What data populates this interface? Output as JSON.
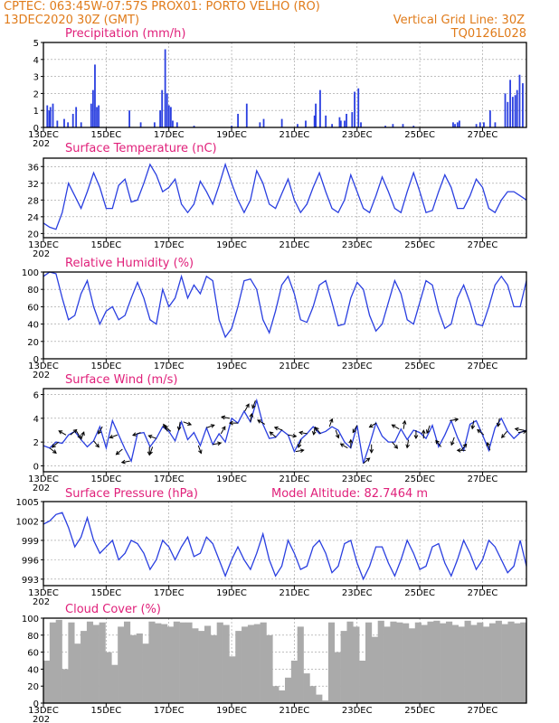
{
  "header": {
    "left_line1": "CPTEC:   063:45W-07:57S   PROX01: PORTO VELHO (RO)",
    "left_line2": "13DEC2020 30Z (GMT)",
    "right_line2": "Vertical Grid Line: 30Z",
    "right_line3": "TQ0126L028"
  },
  "colors": {
    "header": "#e07b1a",
    "title": "#e0207a",
    "series": "#2a3fe0",
    "cloud": "#aaaaaa"
  },
  "x_axis": {
    "ticks": [
      "13DEC",
      "15DEC",
      "17DEC",
      "19DEC",
      "21DEC",
      "23DEC",
      "25DEC",
      "27DEC"
    ],
    "under_label": "202"
  },
  "chart_data": [
    {
      "type": "bar",
      "title": "Precipitation (mm/h)",
      "ylim": [
        0,
        5
      ],
      "yticks": [
        0,
        1,
        2,
        3,
        4,
        5
      ],
      "grid": true,
      "points": [
        [
          0.6,
          1.3
        ],
        [
          0.9,
          1.0
        ],
        [
          1.1,
          1.2
        ],
        [
          1.5,
          1.4
        ],
        [
          2.2,
          0.4
        ],
        [
          3.3,
          0.5
        ],
        [
          3.9,
          0.3
        ],
        [
          4.7,
          0.8
        ],
        [
          5.2,
          1.2
        ],
        [
          6.0,
          0.3
        ],
        [
          7.6,
          1.4
        ],
        [
          7.9,
          2.2
        ],
        [
          8.2,
          3.7
        ],
        [
          8.5,
          1.2
        ],
        [
          8.8,
          1.3
        ],
        [
          13.7,
          1.0
        ],
        [
          15.5,
          0.3
        ],
        [
          17.7,
          0.3
        ],
        [
          18.6,
          1.0
        ],
        [
          18.9,
          2.2
        ],
        [
          19.4,
          4.6
        ],
        [
          19.7,
          2.0
        ],
        [
          20.0,
          1.3
        ],
        [
          20.3,
          1.2
        ],
        [
          20.6,
          0.4
        ],
        [
          21.3,
          0.3
        ],
        [
          24.0,
          0.1
        ],
        [
          30.0,
          0.1
        ],
        [
          31.0,
          0.8
        ],
        [
          32.4,
          1.4
        ],
        [
          34.5,
          0.3
        ],
        [
          35.1,
          0.5
        ],
        [
          38.0,
          0.5
        ],
        [
          40.5,
          0.2
        ],
        [
          41.8,
          0.4
        ],
        [
          43.2,
          0.7
        ],
        [
          43.4,
          1.4
        ],
        [
          44.1,
          2.2
        ],
        [
          45.0,
          0.7
        ],
        [
          46.0,
          0.2
        ],
        [
          47.2,
          0.6
        ],
        [
          47.4,
          0.4
        ],
        [
          48.0,
          0.4
        ],
        [
          48.3,
          0.8
        ],
        [
          49.2,
          0.9
        ],
        [
          49.6,
          2.1
        ],
        [
          50.2,
          2.3
        ],
        [
          50.6,
          0.3
        ],
        [
          54.5,
          0.1
        ],
        [
          55.7,
          0.2
        ],
        [
          57.3,
          0.2
        ],
        [
          59.0,
          0.1
        ],
        [
          65.3,
          0.3
        ],
        [
          65.6,
          0.2
        ],
        [
          66.0,
          0.3
        ],
        [
          66.3,
          0.4
        ],
        [
          69.0,
          0.2
        ],
        [
          69.6,
          0.3
        ],
        [
          70.2,
          0.3
        ],
        [
          71.2,
          1.0
        ],
        [
          72.0,
          0.3
        ],
        [
          73.6,
          2.0
        ],
        [
          74.0,
          1.5
        ],
        [
          74.4,
          2.8
        ],
        [
          74.8,
          1.8
        ],
        [
          75.2,
          1.9
        ],
        [
          75.5,
          2.2
        ],
        [
          75.9,
          3.1
        ],
        [
          76.4,
          2.6
        ]
      ]
    },
    {
      "type": "line",
      "title": "Surface Temperature (nC)",
      "ylim": [
        19,
        38
      ],
      "yticks": [
        20,
        24,
        28,
        32,
        36
      ],
      "grid": true,
      "x": [
        0,
        1,
        2,
        3,
        4,
        5,
        6,
        7,
        8,
        9,
        10,
        11,
        12,
        13,
        14,
        15,
        16,
        17,
        18,
        19,
        20,
        21,
        22,
        23,
        24,
        25,
        26,
        27,
        28,
        29,
        30,
        31,
        32,
        33,
        34,
        35,
        36,
        37,
        38,
        39,
        40,
        41,
        42,
        43,
        44,
        45,
        46,
        47,
        48,
        49,
        50,
        51,
        52,
        53,
        54,
        55,
        56,
        57,
        58,
        59,
        60,
        61,
        62,
        63,
        64,
        65,
        66,
        67,
        68,
        69,
        70,
        71,
        72,
        73,
        74,
        75,
        76,
        77
      ],
      "y": [
        22.5,
        21.5,
        21,
        25,
        32,
        29,
        26,
        30,
        34.5,
        31,
        26,
        26,
        31.5,
        33,
        27.5,
        28,
        32,
        36.5,
        34,
        30,
        31,
        33,
        27,
        25,
        27,
        32.5,
        30,
        27,
        31.5,
        36.5,
        32,
        28,
        25,
        28,
        35,
        32,
        27,
        26,
        29.5,
        33,
        28,
        25,
        27,
        31,
        34.5,
        30,
        26,
        25,
        28,
        34,
        30,
        26,
        25,
        29,
        33.5,
        30,
        26,
        25,
        30,
        34.5,
        30,
        25,
        25.5,
        30,
        34,
        31,
        26,
        26,
        29,
        33,
        31,
        26,
        25,
        28,
        30,
        30,
        29,
        28
      ]
    },
    {
      "type": "line",
      "title": "Relative Humidity (%)",
      "ylim": [
        0,
        100
      ],
      "yticks": [
        0,
        20,
        40,
        60,
        80,
        100
      ],
      "grid": true,
      "x": [
        0,
        1,
        2,
        3,
        4,
        5,
        6,
        7,
        8,
        9,
        10,
        11,
        12,
        13,
        14,
        15,
        16,
        17,
        18,
        19,
        20,
        21,
        22,
        23,
        24,
        25,
        26,
        27,
        28,
        29,
        30,
        31,
        32,
        33,
        34,
        35,
        36,
        37,
        38,
        39,
        40,
        41,
        42,
        43,
        44,
        45,
        46,
        47,
        48,
        49,
        50,
        51,
        52,
        53,
        54,
        55,
        56,
        57,
        58,
        59,
        60,
        61,
        62,
        63,
        64,
        65,
        66,
        67,
        68,
        69,
        70,
        71,
        72,
        73,
        74,
        75,
        76,
        77
      ],
      "y": [
        95,
        100,
        98,
        70,
        45,
        50,
        75,
        90,
        60,
        40,
        55,
        60,
        45,
        50,
        70,
        88,
        70,
        45,
        40,
        80,
        60,
        70,
        95,
        70,
        85,
        75,
        95,
        90,
        45,
        25,
        35,
        60,
        90,
        92,
        80,
        45,
        30,
        55,
        85,
        95,
        75,
        45,
        42,
        60,
        85,
        90,
        65,
        38,
        40,
        70,
        88,
        80,
        50,
        32,
        40,
        65,
        90,
        75,
        45,
        40,
        65,
        90,
        85,
        55,
        35,
        40,
        70,
        85,
        65,
        40,
        38,
        60,
        85,
        95,
        85,
        60,
        60,
        90
      ]
    },
    {
      "type": "line",
      "title": "Surface Wind (m/s)",
      "ylim": [
        -0.5,
        6.5
      ],
      "yticks": [
        0,
        2,
        4,
        6
      ],
      "grid": true,
      "x": [
        0,
        1,
        2,
        3,
        4,
        5,
        6,
        7,
        8,
        9,
        10,
        11,
        12,
        13,
        14,
        15,
        16,
        17,
        18,
        19,
        20,
        21,
        22,
        23,
        24,
        25,
        26,
        27,
        28,
        29,
        30,
        31,
        32,
        33,
        34,
        35,
        36,
        37,
        38,
        39,
        40,
        41,
        42,
        43,
        44,
        45,
        46,
        47,
        48,
        49,
        50,
        51,
        52,
        53,
        54,
        55,
        56,
        57,
        58,
        59,
        60,
        61,
        62,
        63,
        64,
        65,
        66,
        67,
        68,
        69,
        70,
        71,
        72,
        73,
        74,
        75,
        76,
        77
      ],
      "y": [
        1.7,
        1.5,
        2.0,
        1.9,
        2.6,
        2.9,
        2.2,
        1.6,
        2.1,
        3.3,
        1.5,
        3.8,
        2.6,
        1.4,
        0.4,
        2.7,
        2.8,
        1.6,
        2.3,
        3.3,
        2.9,
        2.1,
        3.7,
        2.2,
        2.8,
        1.7,
        3.2,
        1.8,
        2.7,
        2.0,
        4.0,
        3.6,
        4.6,
        3.7,
        5.5,
        3.5,
        2.3,
        2.4,
        3.0,
        2.6,
        1.2,
        2.2,
        2.7,
        3.3,
        2.7,
        2.9,
        3.3,
        3.0,
        2.0,
        1.5,
        3.4,
        0.2,
        1.8,
        3.6,
        2.5,
        2.0,
        2.0,
        3.1,
        2.2,
        3.0,
        2.8,
        2.3,
        3.4,
        1.6,
        2.6,
        3.8,
        2.4,
        1.3,
        3.5,
        3.8,
        2.6,
        1.3,
        3.2,
        4.0,
        2.9,
        2.3,
        2.8,
        3.0
      ]
    },
    {
      "type": "line",
      "title": "Surface Pressure (hPa)",
      "annotation": "Model Altitude: 82.7464 m",
      "ylim": [
        992,
        1005
      ],
      "yticks": [
        993,
        996,
        999,
        1002,
        1005
      ],
      "yticklabels": [
        "993",
        "996",
        "999",
        "1002",
        "1005"
      ],
      "grid": true,
      "x": [
        0,
        1,
        2,
        3,
        4,
        5,
        6,
        7,
        8,
        9,
        10,
        11,
        12,
        13,
        14,
        15,
        16,
        17,
        18,
        19,
        20,
        21,
        22,
        23,
        24,
        25,
        26,
        27,
        28,
        29,
        30,
        31,
        32,
        33,
        34,
        35,
        36,
        37,
        38,
        39,
        40,
        41,
        42,
        43,
        44,
        45,
        46,
        47,
        48,
        49,
        50,
        51,
        52,
        53,
        54,
        55,
        56,
        57,
        58,
        59,
        60,
        61,
        62,
        63,
        64,
        65,
        66,
        67,
        68,
        69,
        70,
        71,
        72,
        73,
        74,
        75,
        76,
        77
      ],
      "y": [
        1001.5,
        1002,
        1003,
        1003.3,
        1001,
        998,
        999.5,
        1002.5,
        999,
        997,
        998,
        999,
        996,
        997,
        999,
        998.5,
        997,
        994.5,
        996,
        999,
        998,
        996,
        998,
        999.5,
        996.5,
        997,
        999.5,
        998.5,
        996,
        993.5,
        996,
        998,
        996,
        994.5,
        997,
        1000,
        996,
        993.5,
        995,
        999,
        997,
        994.5,
        995,
        998,
        999,
        997,
        994,
        995,
        998.5,
        999,
        995.5,
        993,
        995,
        998,
        998,
        995.5,
        993.5,
        996,
        999,
        997,
        994.5,
        995,
        998,
        998.5,
        995.5,
        993.5,
        996,
        999,
        997,
        994.5,
        996,
        999,
        998,
        996,
        994,
        995,
        999,
        995
      ]
    },
    {
      "type": "bar",
      "title": "Cloud Cover (%)",
      "ylim": [
        0,
        100
      ],
      "yticks": [
        0,
        20,
        40,
        60,
        80,
        100
      ],
      "grid": true,
      "x": [
        0,
        1,
        2,
        3,
        4,
        5,
        6,
        7,
        8,
        9,
        10,
        11,
        12,
        13,
        14,
        15,
        16,
        17,
        18,
        19,
        20,
        21,
        22,
        23,
        24,
        25,
        26,
        27,
        28,
        29,
        30,
        31,
        32,
        33,
        34,
        35,
        36,
        37,
        38,
        39,
        40,
        41,
        42,
        43,
        44,
        45,
        46,
        47,
        48,
        49,
        50,
        51,
        52,
        53,
        54,
        55,
        56,
        57,
        58,
        59,
        60,
        61,
        62,
        63,
        64,
        65,
        66,
        67,
        68,
        69,
        70,
        71,
        72,
        73,
        74,
        75,
        76,
        77
      ],
      "values": [
        50,
        95,
        98,
        40,
        95,
        70,
        85,
        96,
        92,
        95,
        60,
        45,
        90,
        96,
        80,
        82,
        70,
        96,
        94,
        93,
        90,
        96,
        95,
        95,
        88,
        85,
        91,
        80,
        95,
        92,
        55,
        85,
        90,
        92,
        93,
        95,
        80,
        20,
        15,
        30,
        50,
        90,
        35,
        20,
        10,
        3,
        95,
        60,
        85,
        96,
        90,
        50,
        95,
        78,
        97,
        90,
        96,
        95,
        94,
        88,
        95,
        92,
        96,
        97,
        94,
        96,
        92,
        90,
        97,
        92,
        95,
        90,
        94,
        97,
        93,
        96,
        94,
        95
      ]
    }
  ],
  "wind_arrows": [
    [
      1,
      128
    ],
    [
      2.4,
      230
    ],
    [
      3.6,
      300
    ],
    [
      4.3,
      50
    ],
    [
      5.3,
      150
    ],
    [
      6.0,
      20
    ],
    [
      8.0,
      140
    ],
    [
      9.4,
      210
    ],
    [
      11.8,
      250
    ],
    [
      12.6,
      230
    ],
    [
      13.8,
      260
    ],
    [
      15.5,
      250
    ],
    [
      16.9,
      180
    ],
    [
      17.4,
      200
    ],
    [
      18.0,
      290
    ],
    [
      19.8,
      330
    ],
    [
      20.3,
      310
    ],
    [
      21.8,
      190
    ],
    [
      22.3,
      110
    ],
    [
      24.7,
      160
    ],
    [
      26.0,
      70
    ],
    [
      27.0,
      80
    ],
    [
      28.3,
      30
    ],
    [
      29.7,
      280
    ],
    [
      31.0,
      270
    ],
    [
      32.1,
      30
    ],
    [
      33.0,
      10
    ],
    [
      33.8,
      200
    ],
    [
      35.3,
      300
    ],
    [
      37.1,
      310
    ],
    [
      38.1,
      290
    ],
    [
      39.0,
      100
    ],
    [
      40.2,
      80
    ],
    [
      41.1,
      200
    ],
    [
      42.1,
      280
    ],
    [
      43.3,
      190
    ],
    [
      44.2,
      320
    ],
    [
      45.6,
      20
    ],
    [
      46.6,
      160
    ],
    [
      48.5,
      300
    ],
    [
      49.0,
      0
    ],
    [
      50.0,
      210
    ],
    [
      51.0,
      50
    ],
    [
      52.3,
      180
    ],
    [
      53.1,
      240
    ],
    [
      55.6,
      140
    ],
    [
      56.7,
      300
    ],
    [
      57.4,
      10
    ],
    [
      58.2,
      190
    ],
    [
      59.4,
      180
    ],
    [
      60.6,
      0
    ],
    [
      61.6,
      200
    ],
    [
      63.4,
      320
    ],
    [
      64.8,
      80
    ],
    [
      65.5,
      200
    ],
    [
      66.6,
      40
    ],
    [
      67.3,
      270
    ],
    [
      68.6,
      190
    ],
    [
      70.2,
      310
    ],
    [
      71.2,
      340
    ],
    [
      72.7,
      190
    ],
    [
      73.9,
      220
    ],
    [
      75.7,
      80
    ],
    [
      76.5,
      280
    ]
  ]
}
